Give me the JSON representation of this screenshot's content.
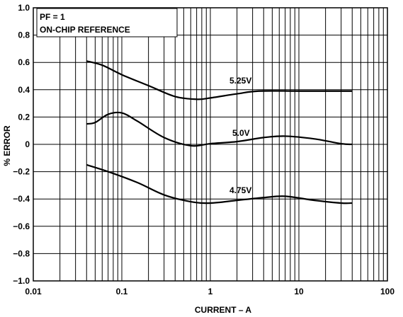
{
  "chart_data": {
    "type": "line",
    "xscale": "log",
    "xlim": [
      0.01,
      100
    ],
    "ylim": [
      -1.0,
      1.0
    ],
    "grid": true,
    "xlabel": "CURRENT – A",
    "ylabel": "% ERROR",
    "x_ticks": [
      "0.01",
      "0.1",
      "1",
      "10",
      "100"
    ],
    "y_ticks": [
      "−1.0",
      "−0.8",
      "−0.6",
      "−0.4",
      "−0.2",
      "0",
      "0.2",
      "0.4",
      "0.6",
      "0.8",
      "1.0"
    ],
    "annotations": [
      "PF = 1",
      "ON-CHIP REFERENCE"
    ],
    "series": [
      {
        "name": "5.25V",
        "x": [
          0.04,
          0.06,
          0.1,
          0.2,
          0.4,
          0.7,
          1.0,
          2.0,
          3.5,
          10,
          40
        ],
        "y": [
          0.61,
          0.58,
          0.51,
          0.43,
          0.35,
          0.33,
          0.34,
          0.37,
          0.39,
          0.39,
          0.39
        ]
      },
      {
        "name": "5.0V",
        "x": [
          0.04,
          0.05,
          0.07,
          0.1,
          0.15,
          0.3,
          0.6,
          1.0,
          2.0,
          4.0,
          7.0,
          15,
          30,
          40
        ],
        "y": [
          0.15,
          0.16,
          0.22,
          0.23,
          0.17,
          0.05,
          -0.01,
          0.005,
          0.02,
          0.05,
          0.06,
          0.04,
          0.005,
          0.0
        ]
      },
      {
        "name": "4.75V",
        "x": [
          0.04,
          0.07,
          0.15,
          0.3,
          0.6,
          1.0,
          2.0,
          4.0,
          7.0,
          15,
          30,
          40
        ],
        "y": [
          -0.15,
          -0.2,
          -0.28,
          -0.37,
          -0.42,
          -0.43,
          -0.41,
          -0.39,
          -0.38,
          -0.41,
          -0.43,
          -0.43
        ]
      }
    ]
  }
}
